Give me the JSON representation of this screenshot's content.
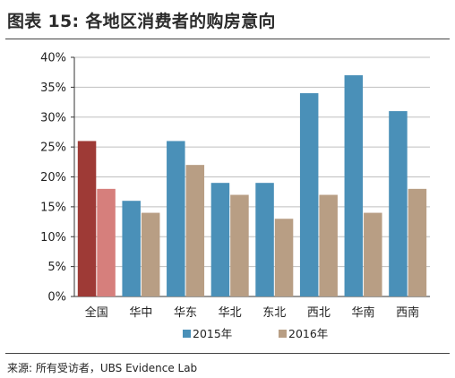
{
  "title": "图表 15: 各地区消费者的购房意向",
  "source": "来源: 所有受访者，UBS Evidence Lab",
  "colors": {
    "series_2015": "#4a90b8",
    "series_2016": "#b89e84",
    "highlight_2015": "#9e3a36",
    "highlight_2016": "#d67f7c",
    "grid": "#bfbfbf",
    "axis": "#333333"
  },
  "chart_data": {
    "type": "bar",
    "title": "",
    "xlabel": "",
    "ylabel": "",
    "ylim": [
      0,
      40
    ],
    "yticks": [
      "0%",
      "5%",
      "10%",
      "15%",
      "20%",
      "25%",
      "30%",
      "35%",
      "40%"
    ],
    "grid": true,
    "legend_position": "bottom",
    "categories": [
      "全国",
      "华中",
      "华东",
      "华北",
      "东北",
      "西北",
      "华南",
      "西南"
    ],
    "highlight_category": "全国",
    "series": [
      {
        "name": "2015年",
        "values": [
          26,
          16,
          26,
          19,
          19,
          34,
          37,
          31
        ]
      },
      {
        "name": "2016年",
        "values": [
          18,
          14,
          22,
          17,
          13,
          17,
          14,
          18
        ]
      }
    ]
  }
}
